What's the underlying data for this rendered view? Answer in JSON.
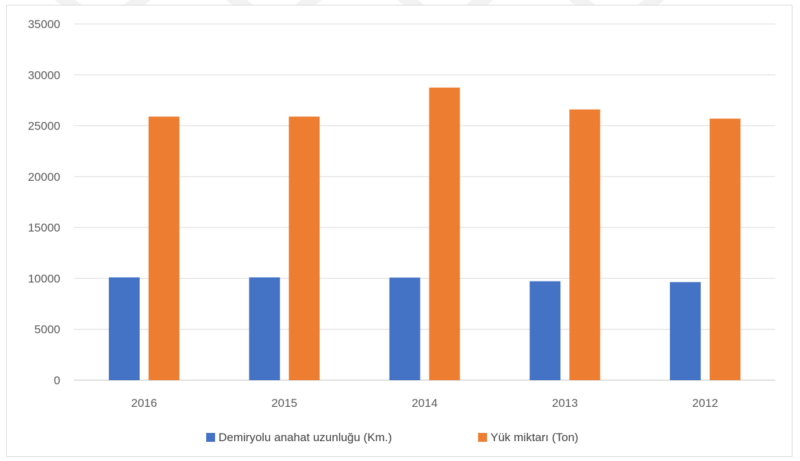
{
  "chart_data": {
    "type": "bar",
    "title": "",
    "xlabel": "",
    "ylabel": "",
    "categories": [
      "2016",
      "2015",
      "2014",
      "2013",
      "2012"
    ],
    "series": [
      {
        "name": "Demiryolu anahat uzunluğu (Km.)",
        "color": "#4472C4",
        "values": [
          10100,
          10100,
          10080,
          9720,
          9640
        ]
      },
      {
        "name": "Yük miktarı (Ton)",
        "color": "#ED7D31",
        "values": [
          25900,
          25900,
          28750,
          26600,
          25700
        ]
      }
    ],
    "ylim": [
      0,
      35000
    ],
    "yticks": [
      "0",
      "5000",
      "10000",
      "15000",
      "20000",
      "25000",
      "30000",
      "35000"
    ],
    "grid": true,
    "legend_position": "bottom"
  },
  "watermark": {
    "color": "#f2f2f2",
    "shape": "chevron-down"
  }
}
